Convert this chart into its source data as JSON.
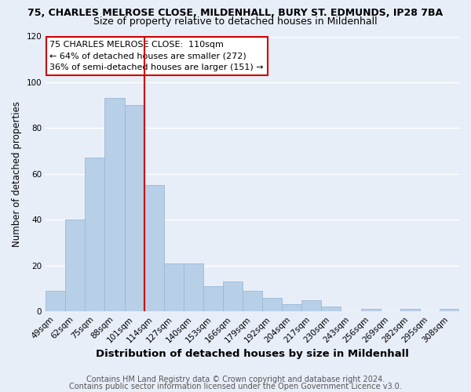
{
  "title_line1": "75, CHARLES MELROSE CLOSE, MILDENHALL, BURY ST. EDMUNDS, IP28 7BA",
  "title_line2": "Size of property relative to detached houses in Mildenhall",
  "xlabel": "Distribution of detached houses by size in Mildenhall",
  "ylabel": "Number of detached properties",
  "bar_labels": [
    "49sqm",
    "62sqm",
    "75sqm",
    "88sqm",
    "101sqm",
    "114sqm",
    "127sqm",
    "140sqm",
    "153sqm",
    "166sqm",
    "179sqm",
    "192sqm",
    "204sqm",
    "217sqm",
    "230sqm",
    "243sqm",
    "256sqm",
    "269sqm",
    "282sqm",
    "295sqm",
    "308sqm"
  ],
  "bar_heights": [
    9,
    40,
    67,
    93,
    90,
    55,
    21,
    21,
    11,
    13,
    9,
    6,
    3,
    5,
    2,
    0,
    1,
    0,
    1,
    0,
    1
  ],
  "bar_color": "#b8cfe8",
  "bar_edgecolor": "#9ab8d8",
  "vline_color": "#cc0000",
  "ylim": [
    0,
    120
  ],
  "yticks": [
    0,
    20,
    40,
    60,
    80,
    100,
    120
  ],
  "annotation_title": "75 CHARLES MELROSE CLOSE:  110sqm",
  "annotation_line2": "← 64% of detached houses are smaller (272)",
  "annotation_line3": "36% of semi-detached houses are larger (151) →",
  "footer_line1": "Contains HM Land Registry data © Crown copyright and database right 2024.",
  "footer_line2": "Contains public sector information licensed under the Open Government Licence v3.0.",
  "background_color": "#e8eef8",
  "plot_background_color": "#e8eef8",
  "grid_color": "#ffffff",
  "title_fontsize": 9.0,
  "subtitle_fontsize": 9.0,
  "xlabel_fontsize": 9.5,
  "ylabel_fontsize": 8.5,
  "tick_fontsize": 7.5,
  "annotation_fontsize": 8.0,
  "footer_fontsize": 7.0
}
